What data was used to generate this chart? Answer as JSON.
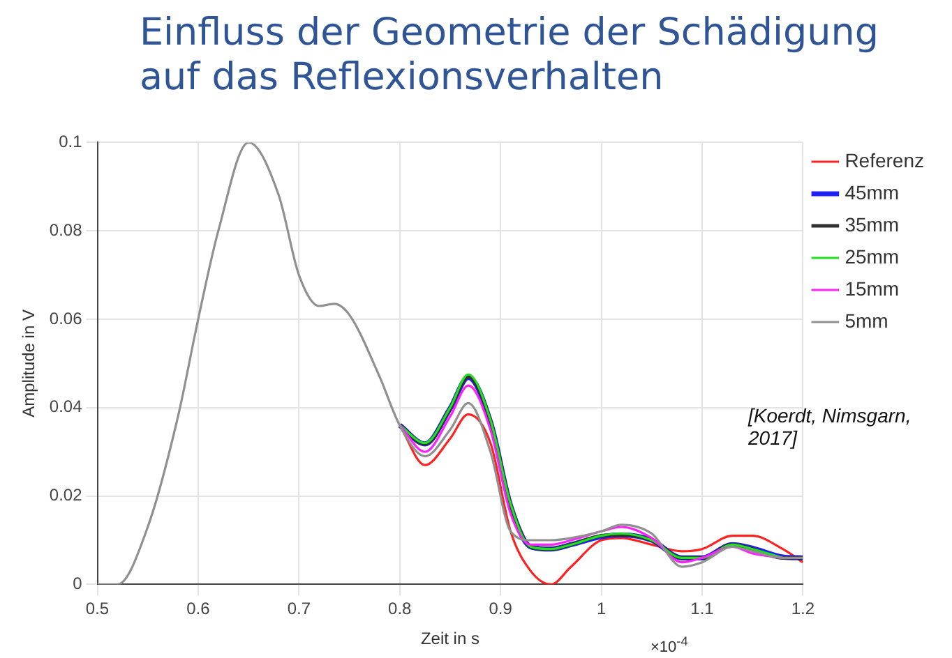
{
  "chart_data": {
    "type": "line",
    "title": "Einfluss der Geometrie der Schädigung auf das Reflexionsverhalten",
    "xlabel": "Zeit in s",
    "ylabel": "Amplitude in V",
    "annotations": [
      "×10$^{-4}$",
      "[Koerdt, Nimsgarn, 2017]"
    ],
    "x": [
      0.5,
      0.52,
      0.55,
      0.58,
      0.6,
      0.62,
      0.65,
      0.68,
      0.7,
      0.72,
      0.735,
      0.75,
      0.78,
      0.8,
      0.825,
      0.85,
      0.868,
      0.89,
      0.91,
      0.93,
      0.95,
      0.97,
      1.0,
      1.02,
      1.05,
      1.08,
      1.1,
      1.13,
      1.15,
      1.18,
      1.2
    ],
    "series": [
      {
        "name": "Referenz",
        "color": "#ff2020",
        "values": [
          null,
          null,
          null,
          null,
          null,
          null,
          null,
          null,
          null,
          null,
          null,
          null,
          null,
          0.036,
          0.027,
          0.033,
          0.0385,
          0.032,
          0.012,
          0.003,
          0,
          0.004,
          0.01,
          0.0105,
          0.009,
          0.0075,
          0.008,
          0.011,
          0.011,
          0.008,
          0.005
        ]
      },
      {
        "name": "45mm",
        "color": "#2020ff",
        "values": [
          null,
          null,
          null,
          null,
          null,
          null,
          null,
          null,
          null,
          null,
          null,
          null,
          null,
          0.036,
          0.0318,
          0.0398,
          0.0468,
          0.0368,
          0.0178,
          0.0085,
          0.008,
          0.009,
          0.0108,
          0.0112,
          0.01,
          0.006,
          0.006,
          0.009,
          0.0082,
          0.0062,
          0.006
        ]
      },
      {
        "name": "35mm",
        "color": "#303030",
        "values": [
          null,
          null,
          null,
          null,
          null,
          null,
          null,
          null,
          null,
          null,
          null,
          null,
          null,
          0.036,
          0.0318,
          0.0398,
          0.047,
          0.037,
          0.018,
          0.0085,
          0.008,
          0.009,
          0.011,
          0.0112,
          0.01,
          0.006,
          0.006,
          0.009,
          0.008,
          0.006,
          0.006
        ]
      },
      {
        "name": "25mm",
        "color": "#20e020",
        "values": [
          null,
          null,
          null,
          null,
          null,
          null,
          null,
          null,
          null,
          null,
          null,
          null,
          null,
          0.036,
          0.032,
          0.04,
          0.0475,
          0.0372,
          0.0182,
          0.0085,
          0.008,
          0.009,
          0.011,
          0.0115,
          0.01,
          0.006,
          0.006,
          0.009,
          0.008,
          0.006,
          null
        ]
      },
      {
        "name": "15mm",
        "color": "#ff20ff",
        "values": [
          null,
          null,
          null,
          null,
          null,
          null,
          null,
          null,
          null,
          null,
          null,
          null,
          null,
          0.036,
          0.03,
          0.038,
          0.045,
          0.035,
          0.016,
          0.009,
          0.009,
          0.01,
          0.012,
          0.013,
          0.0105,
          0.005,
          0.006,
          0.0085,
          0.007,
          0.006,
          null
        ]
      },
      {
        "name": "5mm",
        "color": "#909090",
        "values": [
          0,
          0,
          0.013,
          0.038,
          0.06,
          0.08,
          0.1,
          0.088,
          0.07,
          0.063,
          0.0635,
          0.061,
          0.047,
          0.036,
          0.029,
          0.035,
          0.041,
          0.03,
          0.012,
          0.01,
          0.01,
          0.0105,
          0.012,
          0.0135,
          0.0115,
          0.004,
          0.005,
          0.0085,
          0.0075,
          0.006,
          0.006
        ]
      }
    ],
    "xlim": [
      0.5,
      1.2
    ],
    "xticks": [
      0.5,
      0.6,
      0.7,
      0.8,
      0.9,
      1,
      1.1,
      1.2
    ],
    "ylim": [
      0,
      0.1
    ],
    "yticks": [
      0,
      0.02,
      0.04,
      0.06,
      0.08,
      0.1
    ],
    "grid": true,
    "legend": "top right",
    "marker": "none",
    "line_style": "solid"
  }
}
